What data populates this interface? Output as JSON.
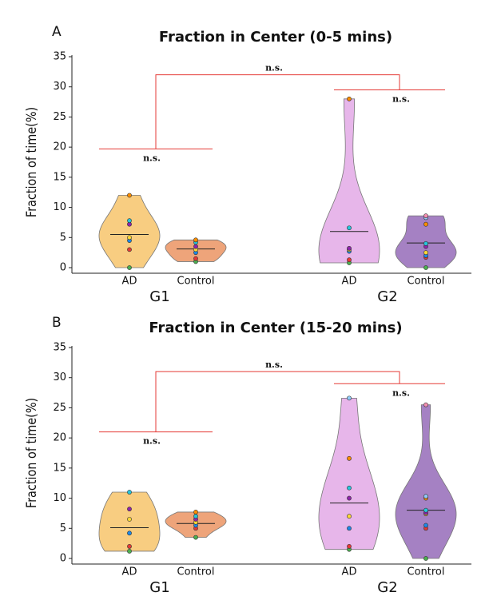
{
  "chart_data": [
    {
      "type": "violin",
      "panel": "A",
      "title": "Fraction in Center (0-5 mins)",
      "ylabel": "Fraction of time(%)",
      "ylim": [
        0,
        35
      ],
      "yticks": [
        0,
        5,
        10,
        15,
        20,
        25,
        30,
        35
      ],
      "categories": [
        "AD",
        "Control",
        "AD",
        "Control"
      ],
      "groups": [
        "G1",
        "G2"
      ],
      "point_colors": [
        "#4caf50",
        "#e53935",
        "#1e88e5",
        "#fdd835",
        "#8e24aa",
        "#26c6da",
        "#fb8c00",
        "#90caf9",
        "#f48fb1"
      ],
      "series": [
        {
          "color": "#f7c873",
          "values": [
            0,
            3,
            4.5,
            5,
            7.2,
            7.8,
            12
          ],
          "mean": 5.5
        },
        {
          "color": "#ec9a6b",
          "values": [
            1,
            1.5,
            2.5,
            3,
            3.5,
            4.2,
            4.6
          ],
          "mean": 3.1
        },
        {
          "color": "#e4aee8",
          "values": [
            0.8,
            1.3,
            2.7,
            3,
            3.2,
            6.6,
            28
          ],
          "mean": 6
        },
        {
          "color": "#9b73bd",
          "values": [
            0,
            1.7,
            2,
            2.5,
            3.5,
            4,
            7.2,
            8.3,
            8.6
          ],
          "mean": 4.1
        }
      ],
      "brackets": [
        {
          "y": 19.7,
          "label": "n.s."
        },
        {
          "y": 29.5,
          "label": "n.s."
        },
        {
          "y": 32,
          "label": "n.s."
        }
      ]
    },
    {
      "type": "violin",
      "panel": "B",
      "title": "Fraction in Center (15-20 mins)",
      "ylabel": "Fraction of time(%)",
      "ylim": [
        0,
        35
      ],
      "yticks": [
        0,
        5,
        10,
        15,
        20,
        25,
        30,
        35
      ],
      "categories": [
        "AD",
        "Control",
        "AD",
        "Control"
      ],
      "groups": [
        "G1",
        "G2"
      ],
      "point_colors": [
        "#4caf50",
        "#e53935",
        "#1e88e5",
        "#fdd835",
        "#8e24aa",
        "#26c6da",
        "#fb8c00",
        "#90caf9",
        "#f48fb1"
      ],
      "series": [
        {
          "color": "#f7c873",
          "values": [
            1.2,
            2,
            4.2,
            6.5,
            8.2,
            11
          ],
          "mean": 5.1
        },
        {
          "color": "#ec9a6b",
          "values": [
            3.5,
            5,
            5.5,
            6,
            6.5,
            7,
            7.7
          ],
          "mean": 5.8
        },
        {
          "color": "#e4aee8",
          "values": [
            1.5,
            2,
            5,
            7,
            10,
            11.7,
            16.6,
            26.6
          ],
          "mean": 9.2
        },
        {
          "color": "#9b73bd",
          "values": [
            0,
            5,
            5.5,
            7.4,
            7.6,
            8,
            10,
            10.3,
            25.5
          ],
          "mean": 8
        }
      ],
      "brackets": [
        {
          "y": 21,
          "label": "n.s."
        },
        {
          "y": 29,
          "label": "n.s."
        },
        {
          "y": 31,
          "label": "n.s."
        }
      ]
    }
  ]
}
